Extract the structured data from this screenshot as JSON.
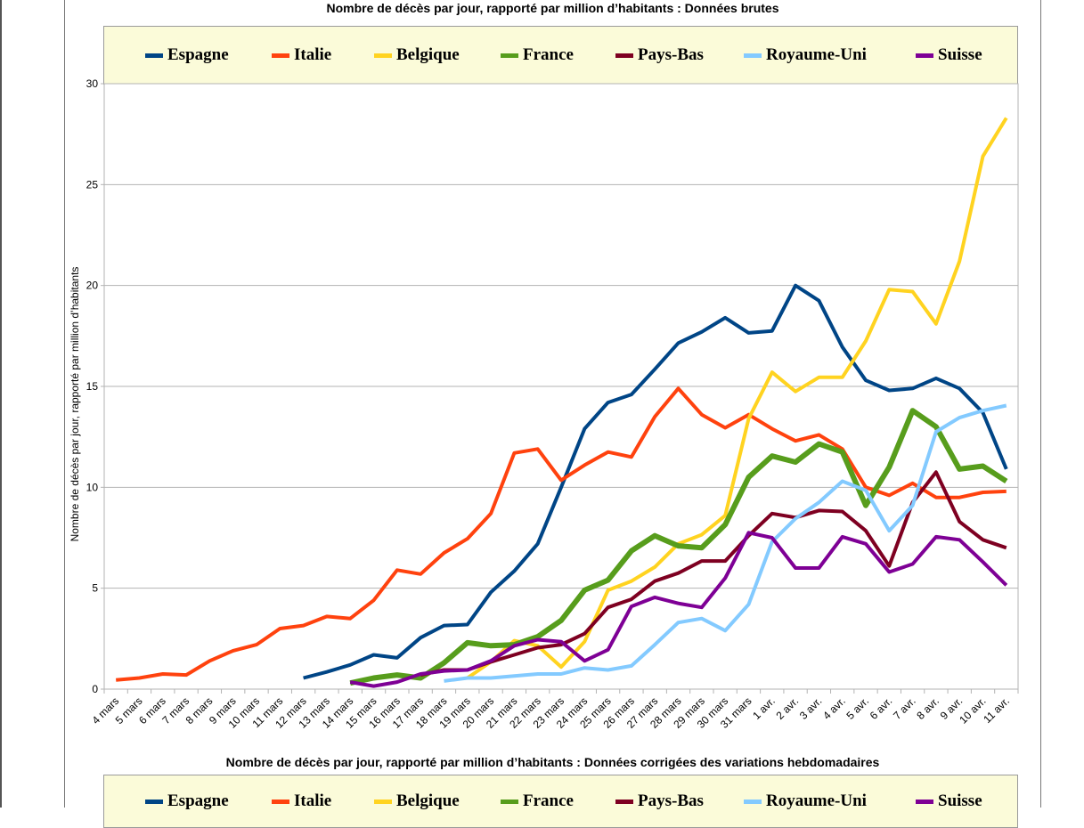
{
  "chart_data": [
    {
      "type": "line",
      "title": "Nombre de décès par jour, rapporté par million d’habitants : Données brutes",
      "ylabel": "Nombre de décès par jour, rapporté par million d’habitants",
      "xlabel": "",
      "ylim": [
        0,
        30
      ],
      "yticks": [
        "0",
        "5",
        "10",
        "15",
        "20",
        "25",
        "30"
      ],
      "grid": true,
      "legend": "top",
      "categories": [
        "4 mars",
        "5 mars",
        "6 mars",
        "7 mars",
        "8 mars",
        "9 mars",
        "10 mars",
        "11 mars",
        "12 mars",
        "13 mars",
        "14 mars",
        "15 mars",
        "16 mars",
        "17 mars",
        "18 mars",
        "19 mars",
        "20 mars",
        "21 mars",
        "22 mars",
        "23 mars",
        "24 mars",
        "25 mars",
        "26 mars",
        "27 mars",
        "28 mars",
        "29 mars",
        "30 mars",
        "31 mars",
        "1 avr.",
        "2 avr.",
        "3 avr.",
        "4 avr.",
        "5 avr.",
        "6 avr.",
        "7 avr.",
        "8 avr.",
        "9 avr.",
        "10 avr.",
        "11 avr."
      ],
      "series": [
        {
          "name": "Espagne",
          "color": "#004586",
          "width": 4,
          "values": [
            null,
            null,
            null,
            null,
            null,
            null,
            null,
            null,
            0.55,
            0.85,
            1.2,
            1.7,
            1.55,
            2.55,
            3.15,
            3.2,
            4.8,
            5.85,
            7.2,
            10.0,
            12.9,
            14.2,
            14.6,
            15.85,
            17.15,
            17.7,
            18.4,
            17.65,
            17.75,
            20.0,
            19.25,
            16.95,
            15.3,
            14.8,
            14.9,
            15.4,
            14.9,
            13.7,
            10.9
          ]
        },
        {
          "name": "Italie",
          "color": "#ff420e",
          "width": 4,
          "values": [
            0.45,
            0.55,
            0.75,
            0.7,
            1.4,
            1.9,
            2.2,
            3.0,
            3.15,
            3.6,
            3.5,
            4.4,
            5.9,
            5.7,
            6.75,
            7.45,
            8.7,
            11.7,
            11.9,
            10.35,
            11.1,
            11.75,
            11.5,
            13.5,
            14.9,
            13.6,
            12.95,
            13.6,
            12.9,
            12.3,
            12.6,
            11.9,
            10.0,
            9.6,
            10.2,
            9.5,
            9.5,
            9.75,
            9.8
          ]
        },
        {
          "name": "Belgique",
          "color": "#ffd320",
          "width": 4,
          "values": [
            null,
            null,
            null,
            null,
            null,
            null,
            null,
            null,
            null,
            null,
            null,
            null,
            null,
            null,
            null,
            0.55,
            1.35,
            2.4,
            2.15,
            1.1,
            2.35,
            4.9,
            5.35,
            6.05,
            7.2,
            7.65,
            8.6,
            13.4,
            15.7,
            14.75,
            15.45,
            15.45,
            17.25,
            19.8,
            19.7,
            18.1,
            21.2,
            26.4,
            28.3
          ]
        },
        {
          "name": "France",
          "color": "#579d1c",
          "width": 6,
          "values": [
            null,
            null,
            null,
            null,
            null,
            null,
            null,
            null,
            null,
            null,
            0.3,
            0.55,
            0.7,
            0.55,
            1.3,
            2.3,
            2.15,
            2.2,
            2.6,
            3.4,
            4.9,
            5.4,
            6.85,
            7.6,
            7.1,
            7.0,
            8.15,
            10.5,
            11.55,
            11.25,
            12.15,
            11.75,
            9.1,
            11.0,
            13.8,
            13.0,
            10.9,
            11.05,
            10.3
          ]
        },
        {
          "name": "Pays-Bas",
          "color": "#7e0021",
          "width": 4,
          "values": [
            null,
            null,
            null,
            null,
            null,
            null,
            null,
            null,
            null,
            null,
            0.3,
            null,
            null,
            0.7,
            0.95,
            0.95,
            1.35,
            1.7,
            2.05,
            2.2,
            2.75,
            4.05,
            4.45,
            5.35,
            5.75,
            6.35,
            6.35,
            7.6,
            8.7,
            8.5,
            8.85,
            8.8,
            7.85,
            6.1,
            9.25,
            10.75,
            8.3,
            7.4,
            7.0
          ]
        },
        {
          "name": "Royaume-Uni",
          "color": "#83caff",
          "width": 4,
          "values": [
            null,
            null,
            null,
            null,
            null,
            null,
            null,
            null,
            null,
            null,
            null,
            null,
            null,
            null,
            0.4,
            0.55,
            0.55,
            0.65,
            0.75,
            0.75,
            1.05,
            0.95,
            1.15,
            2.2,
            3.3,
            3.5,
            2.9,
            4.2,
            7.3,
            8.45,
            9.25,
            10.3,
            9.85,
            7.85,
            9.1,
            12.75,
            13.45,
            13.8,
            14.05
          ]
        },
        {
          "name": "Suisse",
          "color": "#7e0095",
          "width": 4,
          "values": [
            null,
            null,
            null,
            null,
            null,
            null,
            null,
            null,
            null,
            null,
            0.35,
            0.15,
            0.35,
            0.75,
            0.9,
            0.95,
            1.4,
            2.15,
            2.45,
            2.35,
            1.4,
            1.95,
            4.1,
            4.55,
            4.25,
            4.05,
            5.5,
            7.75,
            7.5,
            6.0,
            6.0,
            7.55,
            7.2,
            5.8,
            6.2,
            7.55,
            7.4,
            6.3,
            5.15
          ]
        }
      ]
    },
    {
      "type": "line",
      "title": "Nombre de décès par jour, rapporté par million d’habitants : Données corrigées des variations hebdomadaires",
      "legend": "top",
      "series": [
        {
          "name": "Espagne",
          "color": "#004586"
        },
        {
          "name": "Italie",
          "color": "#ff420e"
        },
        {
          "name": "Belgique",
          "color": "#ffd320"
        },
        {
          "name": "France",
          "color": "#579d1c"
        },
        {
          "name": "Pays-Bas",
          "color": "#7e0021"
        },
        {
          "name": "Royaume-Uni",
          "color": "#83caff"
        },
        {
          "name": "Suisse",
          "color": "#7e0095"
        }
      ]
    }
  ]
}
